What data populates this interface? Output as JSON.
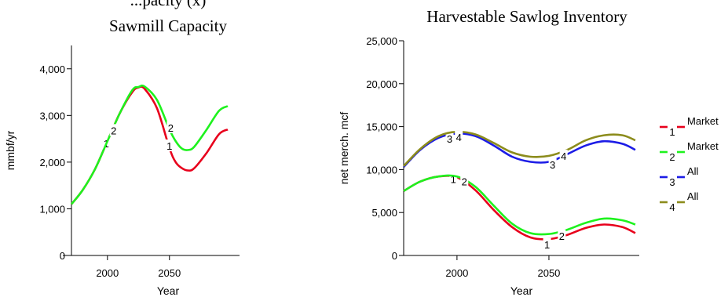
{
  "chart_data": [
    {
      "type": "line",
      "title_line1": "Sawmill Capacity",
      "title_partial": "...pacity (x)",
      "xlabel": "Year",
      "ylabel": "mmbf/yr",
      "xlim": [
        1971,
        2097
      ],
      "ylim": [
        0,
        4500
      ],
      "xticks": [
        2000,
        2050
      ],
      "xtick_labels": [
        "2000",
        "2050"
      ],
      "yticks": [
        0,
        1000,
        2000,
        3000,
        4000
      ],
      "ytick_labels": [
        "0",
        "1,000",
        "2,000",
        "3,000",
        "4,000"
      ],
      "series": [
        {
          "marker": "1",
          "color": "#e8001c",
          "marker_labels": [
            [
              1999,
              2400
            ],
            [
              2050,
              2350
            ]
          ],
          "points": [
            [
              1971,
              1100
            ],
            [
              1980,
              1400
            ],
            [
              1990,
              1850
            ],
            [
              2000,
              2450
            ],
            [
              2010,
              3050
            ],
            [
              2020,
              3500
            ],
            [
              2025,
              3600
            ],
            [
              2030,
              3570
            ],
            [
              2040,
              3150
            ],
            [
              2050,
              2300
            ],
            [
              2055,
              2000
            ],
            [
              2060,
              1870
            ],
            [
              2065,
              1820
            ],
            [
              2070,
              1870
            ],
            [
              2080,
              2200
            ],
            [
              2090,
              2600
            ],
            [
              2097,
              2700
            ]
          ]
        },
        {
          "marker": "2",
          "color": "#1ef21e",
          "marker_labels": [
            [
              2005,
              2680
            ],
            [
              2051,
              2740
            ]
          ],
          "points": [
            [
              1971,
              1100
            ],
            [
              1980,
              1400
            ],
            [
              1990,
              1850
            ],
            [
              2000,
              2450
            ],
            [
              2010,
              3050
            ],
            [
              2020,
              3540
            ],
            [
              2025,
              3610
            ],
            [
              2030,
              3620
            ],
            [
              2040,
              3330
            ],
            [
              2050,
              2700
            ],
            [
              2055,
              2450
            ],
            [
              2060,
              2290
            ],
            [
              2065,
              2260
            ],
            [
              2070,
              2330
            ],
            [
              2080,
              2700
            ],
            [
              2090,
              3100
            ],
            [
              2097,
              3200
            ]
          ]
        }
      ]
    },
    {
      "type": "line",
      "title": "Harvestable Sawlog Inventory",
      "xlabel": "Year",
      "ylabel": "net merch. mcf",
      "xlim": [
        1971,
        2097
      ],
      "ylim": [
        0,
        25000
      ],
      "xticks": [
        2000,
        2050
      ],
      "xtick_labels": [
        "2000",
        "2050"
      ],
      "yticks": [
        0,
        5000,
        10000,
        15000,
        20000,
        25000
      ],
      "ytick_labels": [
        "0",
        "5,000",
        "10,000",
        "15,000",
        "20,000",
        "25,000"
      ],
      "series": [
        {
          "name": "Market",
          "marker": "1",
          "color": "#e8001c",
          "marker_labels": [
            [
              1998,
              8900
            ],
            [
              2049,
              1300
            ]
          ],
          "points": [
            [
              1971,
              7500
            ],
            [
              1980,
              8600
            ],
            [
              1990,
              9200
            ],
            [
              2000,
              9100
            ],
            [
              2010,
              7600
            ],
            [
              2020,
              5300
            ],
            [
              2030,
              3300
            ],
            [
              2040,
              2100
            ],
            [
              2050,
              1900
            ],
            [
              2060,
              2400
            ],
            [
              2070,
              3200
            ],
            [
              2080,
              3600
            ],
            [
              2090,
              3300
            ],
            [
              2097,
              2600
            ]
          ]
        },
        {
          "name": "Market",
          "marker": "2",
          "color": "#1ef21e",
          "marker_labels": [
            [
              2004,
              8600
            ],
            [
              2057,
              2300
            ]
          ],
          "points": [
            [
              1971,
              7500
            ],
            [
              1980,
              8600
            ],
            [
              1990,
              9200
            ],
            [
              2000,
              9200
            ],
            [
              2010,
              8000
            ],
            [
              2020,
              5800
            ],
            [
              2030,
              3700
            ],
            [
              2040,
              2600
            ],
            [
              2050,
              2500
            ],
            [
              2060,
              3000
            ],
            [
              2070,
              3800
            ],
            [
              2080,
              4300
            ],
            [
              2090,
              4100
            ],
            [
              2097,
              3600
            ]
          ]
        },
        {
          "name": "All",
          "marker": "3",
          "color": "#1c1ce6",
          "marker_labels": [
            [
              1996,
              13600
            ],
            [
              2052,
              10600
            ]
          ],
          "points": [
            [
              1971,
              10300
            ],
            [
              1980,
              12300
            ],
            [
              1990,
              13700
            ],
            [
              2000,
              14200
            ],
            [
              2010,
              13900
            ],
            [
              2020,
              12800
            ],
            [
              2030,
              11500
            ],
            [
              2040,
              10900
            ],
            [
              2050,
              10900
            ],
            [
              2060,
              11800
            ],
            [
              2070,
              12800
            ],
            [
              2080,
              13300
            ],
            [
              2090,
              13000
            ],
            [
              2097,
              12300
            ]
          ]
        },
        {
          "name": "All",
          "marker": "4",
          "color": "#8c8c1c",
          "marker_labels": [
            [
              2001,
              13800
            ],
            [
              2058,
              11600
            ]
          ],
          "points": [
            [
              1971,
              10400
            ],
            [
              1980,
              12400
            ],
            [
              1990,
              13900
            ],
            [
              2000,
              14400
            ],
            [
              2010,
              14100
            ],
            [
              2020,
              13100
            ],
            [
              2030,
              12000
            ],
            [
              2040,
              11500
            ],
            [
              2050,
              11600
            ],
            [
              2060,
              12300
            ],
            [
              2070,
              13400
            ],
            [
              2080,
              14000
            ],
            [
              2090,
              14000
            ],
            [
              2097,
              13400
            ]
          ]
        }
      ],
      "legend_placement": "right"
    }
  ]
}
